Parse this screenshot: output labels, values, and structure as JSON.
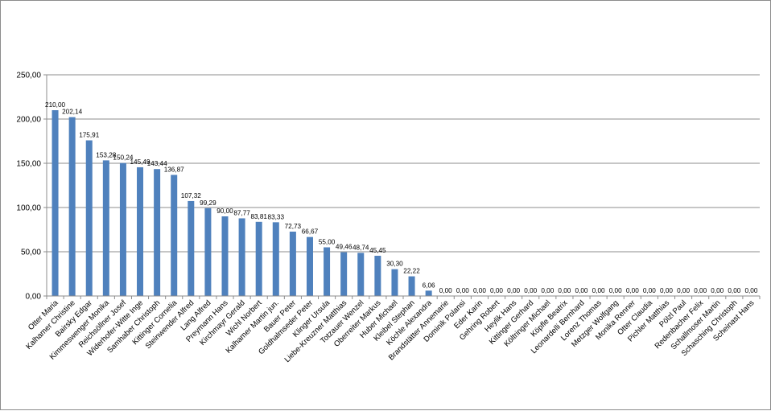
{
  "chart_data": {
    "type": "bar",
    "title": "",
    "xlabel": "",
    "ylabel": "",
    "ylim": [
      0,
      250
    ],
    "yticks": [
      "0,00",
      "50,00",
      "100,00",
      "150,00",
      "200,00",
      "250,00"
    ],
    "grid": true,
    "legend": "none",
    "bar_color": "#4f81bd",
    "categories": [
      "Otter Maria",
      "Kalhamer Christine",
      "Bairsky Edgar",
      "Kimmeswenger Monika",
      "Reichsöllner Josef",
      "Widerhofer-Witte Inge",
      "Samhaber Christoph",
      "Kittinger Cornelia",
      "Steinwender Alfred",
      "Lang Alfred",
      "Preymann Hans",
      "Kirchmayr Gerald",
      "Wichl Norbert",
      "Kalhamer Martin jun.",
      "Bauer Peter",
      "Goldhalmseder Peter",
      "Klinger Ursula",
      "Liebe-Kreuzner Matthias",
      "Totzauer Wenzel",
      "Oberreiter Markus",
      "Huber Michael",
      "Kleibel Stephan",
      "Köchle Alexandra",
      "Brandstätter Annemarie",
      "Dominik Polansi",
      "Eder Karin",
      "Gehring Robert",
      "Heylik Hans",
      "Kittinger Gerhard",
      "Költringer Michael",
      "Köpfle Beatrix",
      "Leonardelli Bernhard",
      "Lorenz Thomas",
      "Metzger Wolfgang",
      "Monika Renner",
      "Otter Claudia",
      "Pichler Matthias",
      "Pölzl Paul",
      "Redenbacher Felix",
      "Schallmoser Martin",
      "Schasching Christoph",
      "Scheinast Hans"
    ],
    "values": [
      210.0,
      202.14,
      175.91,
      153.28,
      150.24,
      145.49,
      143.44,
      136.87,
      107.32,
      99.29,
      90.0,
      87.77,
      83.81,
      83.33,
      72.73,
      66.67,
      55.0,
      49.46,
      48.74,
      45.45,
      30.3,
      22.22,
      6.06,
      0.0,
      0.0,
      0.0,
      0.0,
      0.0,
      0.0,
      0.0,
      0.0,
      0.0,
      0.0,
      0.0,
      0.0,
      0.0,
      0.0,
      0.0,
      0.0,
      0.0,
      0.0,
      0.0
    ],
    "data_labels": [
      "210,00",
      "202,14",
      "175,91",
      "153,28",
      "150,24",
      "145,49",
      "143,44",
      "136,87",
      "107,32",
      "99,29",
      "90,00",
      "87,77",
      "83,81",
      "83,33",
      "72,73",
      "66,67",
      "55,00",
      "49,46",
      "48,74",
      "45,45",
      "30,30",
      "22,22",
      "6,06",
      "0,00",
      "0,00",
      "0,00",
      "0,00",
      "0,00",
      "0,00",
      "0,00",
      "0,00",
      "0,00",
      "0,00",
      "0,00",
      "0,00",
      "0,00",
      "0,00",
      "0,00",
      "0,00",
      "0,00",
      "0,00",
      "0,00"
    ]
  }
}
